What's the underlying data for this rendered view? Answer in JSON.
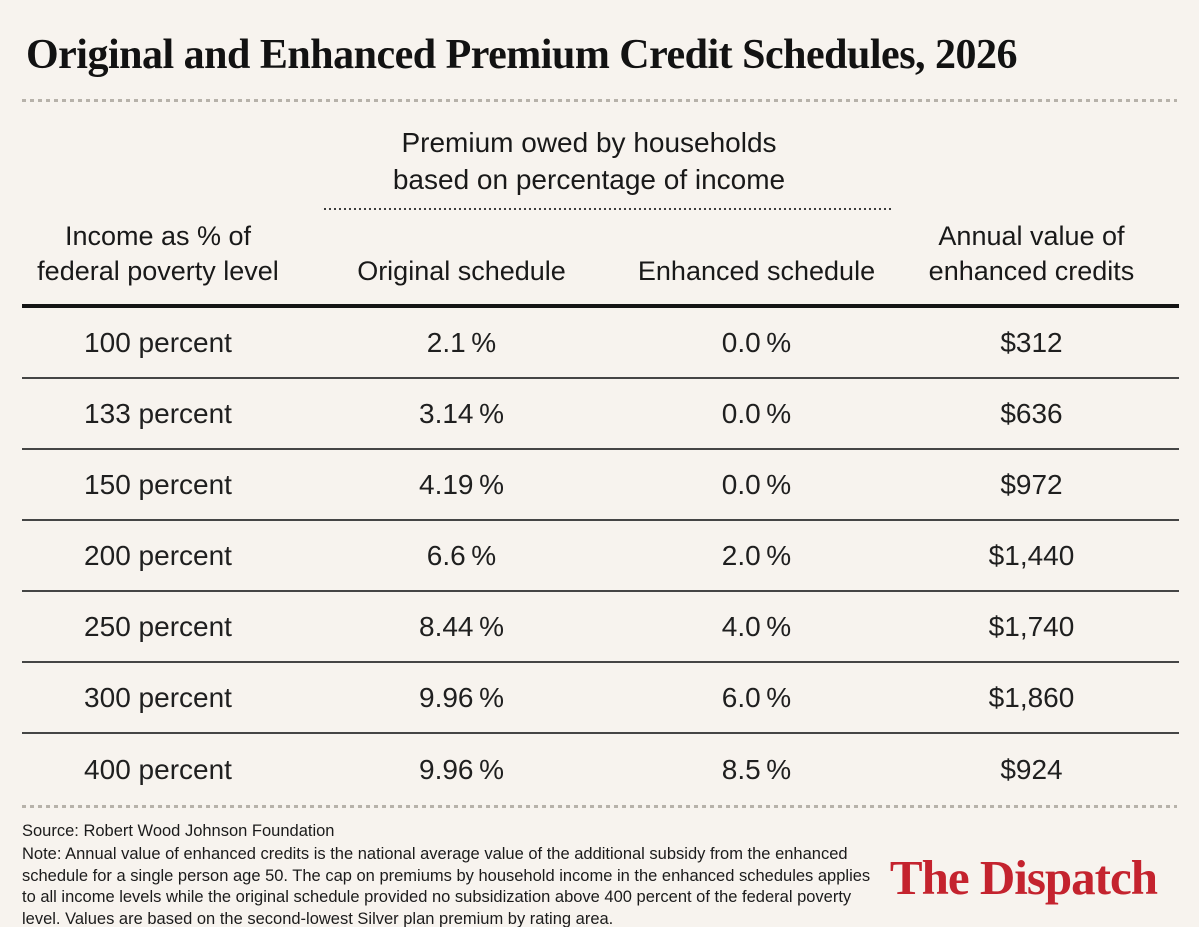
{
  "page": {
    "background_color": "#f7f3ee",
    "accent_red": "#c4232e"
  },
  "chart_data": {
    "type": "table",
    "title": "Original and Enhanced Premium Credit Schedules, 2026",
    "column_group": {
      "label": "Premium owed by households\nbased on percentage of income",
      "spans_columns": [
        "Original schedule",
        "Enhanced schedule"
      ]
    },
    "columns": [
      "Income as % of\nfederal poverty level",
      "Original schedule",
      "Enhanced schedule",
      "Annual value of\nenhanced credits"
    ],
    "rows": [
      [
        "100 percent",
        "2.1 %",
        "0.0 %",
        "$312"
      ],
      [
        "133 percent",
        "3.14 %",
        "0.0 %",
        "$636"
      ],
      [
        "150 percent",
        "4.19 %",
        "0.0 %",
        "$972"
      ],
      [
        "200 percent",
        "6.6 %",
        "2.0 %",
        "$1,440"
      ],
      [
        "250 percent",
        "8.44 %",
        "4.0 %",
        "$1,740"
      ],
      [
        "300 percent",
        "9.96 %",
        "6.0 %",
        "$1,860"
      ],
      [
        "400 percent",
        "9.96 %",
        "8.5 %",
        "$924"
      ]
    ],
    "layout_hints": {
      "grid": "horizontal row separators only",
      "header_rule": "thick solid black below column headers",
      "outer_rules": "light dotted above header area and below last row"
    }
  },
  "footer": {
    "source": "Source: Robert Wood Johnson Foundation",
    "note": "Note: Annual value of enhanced credits is the national average value of the additional subsidy from the enhanced schedule for a single person age 50. The cap on premiums by household income in the enhanced schedules applies to all income levels while the original schedule provided no subsidization above 400 percent of the federal poverty level. Values are based on the second-lowest Silver plan premium by rating area.",
    "logo": "The Dispatch"
  }
}
